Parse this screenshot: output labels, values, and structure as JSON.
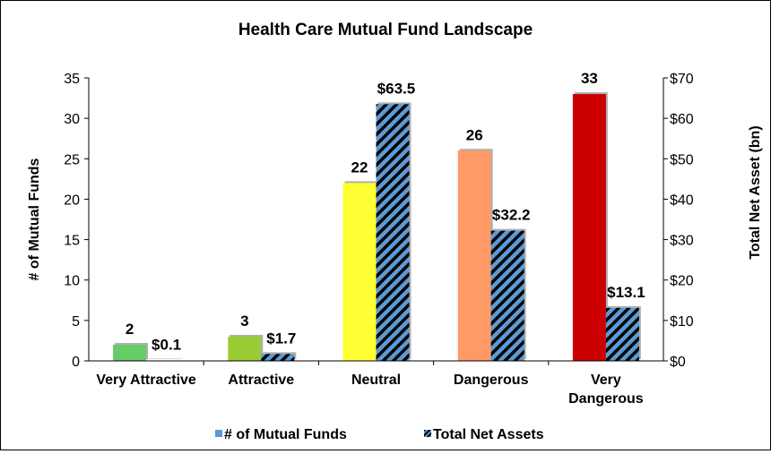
{
  "chart_data": {
    "type": "bar",
    "title": "Health Care Mutual Fund Landscape",
    "categories": [
      "Very Attractive",
      "Attractive",
      "Neutral",
      "Dangerous",
      "Very Dangerous"
    ],
    "category_lines": [
      [
        "Very Attractive"
      ],
      [
        "Attractive"
      ],
      [
        "Neutral"
      ],
      [
        "Dangerous"
      ],
      [
        "Very",
        "Dangerous"
      ]
    ],
    "ylabel": "# of Mutual Funds",
    "y2label": "Total Net Asset (bn)",
    "ylim": [
      0,
      35
    ],
    "y2lim": [
      0,
      70
    ],
    "yticks": [
      "0",
      "5",
      "10",
      "15",
      "20",
      "25",
      "30",
      "35"
    ],
    "y2ticks": [
      "$0",
      "$10",
      "$20",
      "$30",
      "$40",
      "$50",
      "$60",
      "$70"
    ],
    "series": [
      {
        "name": "# of Mutual Funds",
        "axis": "left",
        "values": [
          2,
          3,
          22,
          26,
          33
        ],
        "labels": [
          "2",
          "3",
          "22",
          "26",
          "33"
        ],
        "colors": [
          "#66cc66",
          "#99cc33",
          "#ffff33",
          "#ff9966",
          "#cc0000"
        ],
        "legend_color": "#5b9bd5"
      },
      {
        "name": "Total Net Assets",
        "axis": "right",
        "values": [
          0.1,
          1.7,
          63.5,
          32.2,
          13.1
        ],
        "labels": [
          "$0.1",
          "$1.7",
          "$63.5",
          "$32.2",
          "$13.1"
        ],
        "fill": "#5b9bd5",
        "hatch": "#000000"
      }
    ],
    "legend": "bottom",
    "grid": false
  }
}
